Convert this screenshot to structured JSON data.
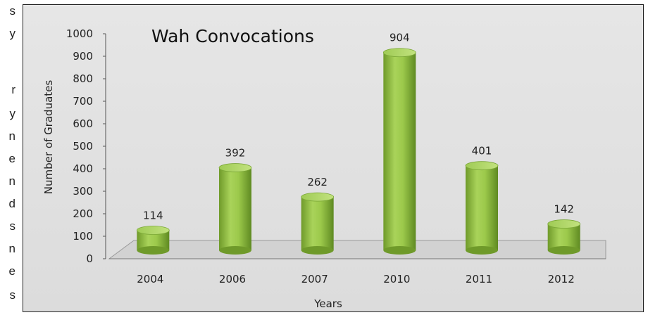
{
  "side_text": [
    "s",
    "y",
    "r",
    "y",
    "n",
    "e",
    "n",
    "d",
    "s",
    "n",
    "e",
    "s"
  ],
  "chart_data": {
    "type": "bar",
    "title": "Wah Convocations",
    "xlabel": "Years",
    "ylabel": "Number of Graduates",
    "categories": [
      "2004",
      "2006",
      "2007",
      "2010",
      "2011",
      "2012"
    ],
    "values": [
      114,
      392,
      262,
      904,
      401,
      142
    ],
    "ylim": [
      0,
      1000
    ],
    "yticks": [
      0,
      100,
      200,
      300,
      400,
      500,
      600,
      700,
      800,
      900,
      1000
    ],
    "bar_color": "#8fbf3f",
    "grid": false,
    "legend": "none"
  }
}
